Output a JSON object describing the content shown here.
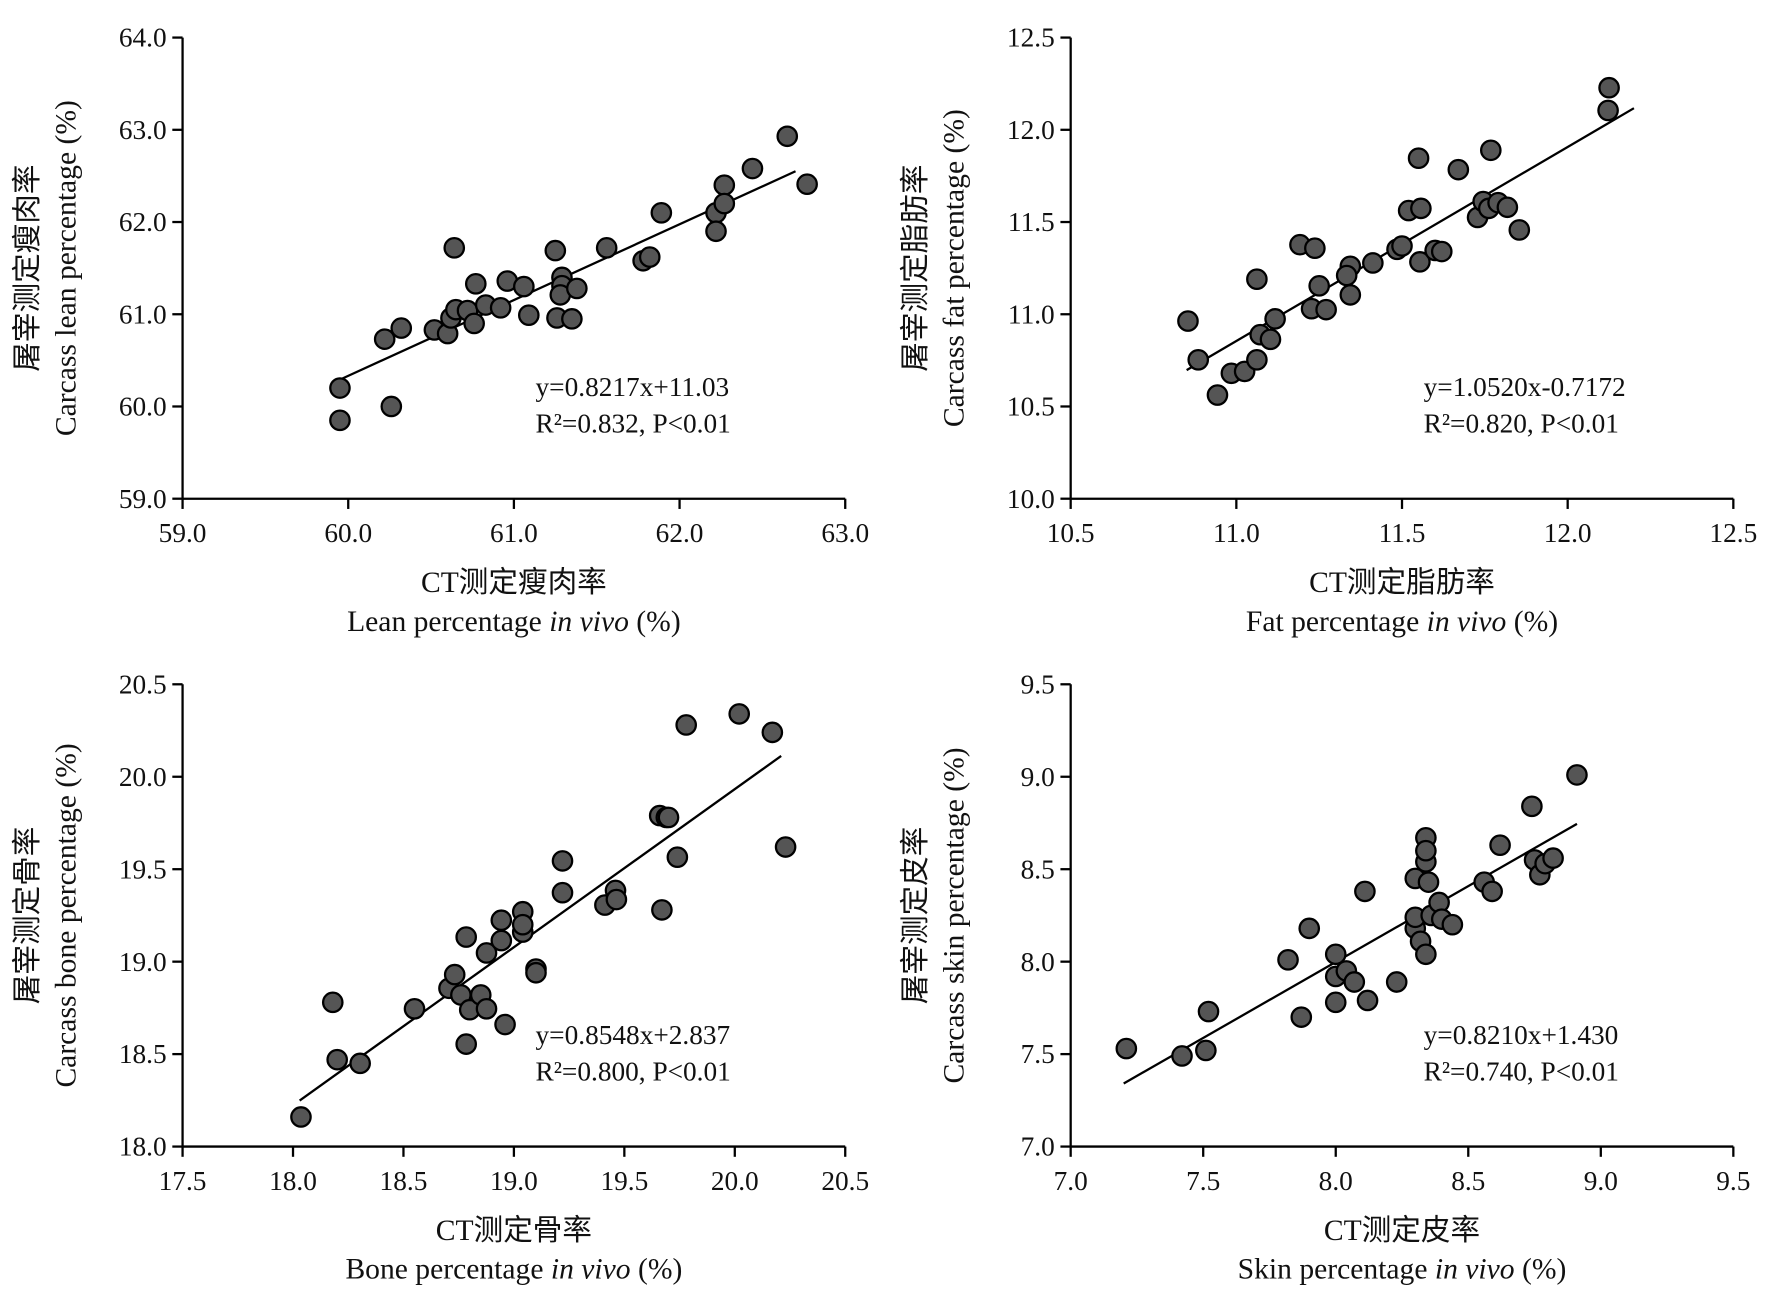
{
  "chart_data": [
    {
      "type": "scatter",
      "color": "#555555",
      "y_label": [
        "屠宰测定瘦肉率",
        "Carcass lean percentage (%)"
      ],
      "x_label": [
        "CT测定瘦肉率",
        "Lean percentage ",
        "in vivo",
        " (%)"
      ],
      "annotations": [
        "y=0.8217x+11.03",
        "R²=0.832, P<0.01"
      ],
      "xlim": [
        59,
        63
      ],
      "ylim": [
        59,
        64
      ],
      "xticks": [
        {
          "value": 59,
          "label": "59.0"
        },
        {
          "value": 60,
          "label": "60.0"
        },
        {
          "value": 61,
          "label": "61.0"
        },
        {
          "value": 62,
          "label": "62.0"
        },
        {
          "value": 63,
          "label": "63.0"
        }
      ],
      "yticks": [
        {
          "value": 59,
          "label": "59.0"
        },
        {
          "value": 60,
          "label": "60.0"
        },
        {
          "value": 61,
          "label": "61.0"
        },
        {
          "value": 62,
          "label": "62.0"
        },
        {
          "value": 63,
          "label": "63.0"
        },
        {
          "value": 64,
          "label": "64.0"
        }
      ],
      "fit": {
        "slope": 0.8217,
        "intercept": 11.03,
        "x": [
          59.95,
          62.7
        ]
      },
      "x": [
        59.95,
        59.95,
        60.26,
        60.22,
        60.32,
        60.52,
        60.6,
        60.62,
        60.65,
        60.64,
        60.72,
        60.76,
        60.77,
        60.83,
        60.92,
        60.96,
        61.06,
        61.09,
        61.25,
        61.26,
        61.29,
        61.29,
        61.28,
        61.35,
        61.38,
        61.56,
        61.78,
        61.82,
        61.89,
        62.22,
        62.22,
        62.27,
        62.27,
        62.44,
        62.65,
        62.77
      ],
      "values": [
        60.2,
        59.85,
        60.0,
        60.73,
        60.85,
        60.83,
        60.79,
        60.96,
        61.05,
        61.72,
        61.04,
        60.9,
        61.33,
        61.1,
        61.07,
        61.36,
        61.3,
        60.99,
        61.69,
        60.96,
        61.4,
        61.31,
        61.21,
        60.95,
        61.28,
        61.72,
        61.58,
        61.62,
        62.1,
        62.1,
        61.9,
        62.4,
        62.2,
        62.58,
        62.93,
        62.41
      ]
    },
    {
      "type": "scatter",
      "color": "#555555",
      "y_label": [
        "屠宰测定脂肪率",
        "Carcass fat percentage (%)"
      ],
      "x_label": [
        "CT测定脂肪率",
        "Fat percentage ",
        "in vivo",
        " (%)"
      ],
      "annotations": [
        "y=1.0520x-0.7172",
        "R²=0.820, P<0.01"
      ],
      "xlim": [
        10.5,
        12.5
      ],
      "ylim": [
        10,
        12.5
      ],
      "xticks": [
        {
          "value": 10.5,
          "label": "10.5"
        },
        {
          "value": 11,
          "label": "11.0"
        },
        {
          "value": 11.5,
          "label": "11.5"
        },
        {
          "value": 12,
          "label": "12.0"
        },
        {
          "value": 12.5,
          "label": "12.5"
        }
      ],
      "yticks": [
        {
          "value": 10,
          "label": "10.0"
        },
        {
          "value": 10.5,
          "label": "10.5"
        },
        {
          "value": 11,
          "label": "11.0"
        },
        {
          "value": 11.5,
          "label": "11.5"
        },
        {
          "value": 12,
          "label": "12.0"
        },
        {
          "value": 12.5,
          "label": "12.5"
        }
      ],
      "fit": {
        "slope": 1.052,
        "intercept": -0.7172,
        "x": [
          10.85,
          12.2
        ]
      },
      "x": [
        10.854,
        10.885,
        10.943,
        10.985,
        11.025,
        11.062,
        11.062,
        11.072,
        11.103,
        11.117,
        11.192,
        11.237,
        11.227,
        11.25,
        11.271,
        11.344,
        11.333,
        11.344,
        11.412,
        11.485,
        11.5,
        11.52,
        11.55,
        11.557,
        11.554,
        11.6,
        11.62,
        11.67,
        11.728,
        11.745,
        11.762,
        11.768,
        11.79,
        11.818,
        11.854,
        12.125,
        12.122
      ],
      "values": [
        10.963,
        10.753,
        10.562,
        10.68,
        10.69,
        11.19,
        10.753,
        10.889,
        10.864,
        10.975,
        11.377,
        11.358,
        11.03,
        11.154,
        11.025,
        11.26,
        11.21,
        11.105,
        11.278,
        11.352,
        11.37,
        11.562,
        11.846,
        11.574,
        11.284,
        11.346,
        11.34,
        11.784,
        11.525,
        11.611,
        11.574,
        11.889,
        11.605,
        11.58,
        11.457,
        12.228,
        12.105
      ]
    },
    {
      "type": "scatter",
      "color": "#555555",
      "y_label": [
        "屠宰测定骨率",
        "Carcass bone percentage (%)"
      ],
      "x_label": [
        "CT测定骨率",
        "Bone percentage ",
        "in vivo",
        " (%)"
      ],
      "annotations": [
        "y=0.8548x+2.837",
        "R²=0.800, P<0.01"
      ],
      "xlim": [
        17.5,
        20.5
      ],
      "ylim": [
        18,
        20.5
      ],
      "xticks": [
        {
          "value": 17.5,
          "label": "17.5"
        },
        {
          "value": 18,
          "label": "18.0"
        },
        {
          "value": 18.5,
          "label": "18.5"
        },
        {
          "value": 19,
          "label": "19.0"
        },
        {
          "value": 19.5,
          "label": "19.5"
        },
        {
          "value": 20,
          "label": "20.0"
        },
        {
          "value": 20.5,
          "label": "20.5"
        }
      ],
      "yticks": [
        {
          "value": 18,
          "label": "18.0"
        },
        {
          "value": 18.5,
          "label": "18.5"
        },
        {
          "value": 19,
          "label": "19.0"
        },
        {
          "value": 19.5,
          "label": "19.5"
        },
        {
          "value": 20,
          "label": "20.0"
        },
        {
          "value": 20.5,
          "label": "20.5"
        }
      ],
      "fit": {
        "slope": 0.8548,
        "intercept": 2.837,
        "x": [
          18.03,
          20.21
        ]
      },
      "x": [
        18.036,
        18.18,
        18.2,
        18.304,
        18.55,
        18.706,
        18.732,
        18.76,
        18.784,
        18.784,
        18.8,
        18.85,
        18.876,
        18.876,
        18.943,
        18.943,
        18.96,
        19.04,
        19.04,
        19.04,
        19.1,
        19.1,
        19.22,
        19.22,
        19.412,
        19.46,
        19.464,
        19.66,
        19.69,
        19.7,
        19.67,
        19.74,
        19.78,
        20.02,
        20.17,
        20.23
      ],
      "values": [
        18.16,
        18.78,
        18.47,
        18.45,
        18.745,
        18.856,
        18.93,
        18.82,
        19.133,
        18.554,
        18.74,
        18.82,
        19.047,
        18.745,
        19.224,
        19.114,
        18.66,
        19.27,
        19.16,
        19.2,
        18.96,
        18.94,
        19.545,
        19.373,
        19.306,
        19.385,
        19.336,
        19.79,
        19.78,
        19.78,
        19.28,
        19.565,
        20.28,
        20.34,
        20.24,
        19.62
      ]
    },
    {
      "type": "scatter",
      "color": "#555555",
      "y_label": [
        "屠宰测定皮率",
        "Carcass skin percentage (%)"
      ],
      "x_label": [
        "CT测定皮率",
        "Skin percentage ",
        "in vivo",
        " (%)"
      ],
      "annotations": [
        "y=0.8210x+1.430",
        "R²=0.740, P<0.01"
      ],
      "xlim": [
        7,
        9.5
      ],
      "ylim": [
        7,
        9.5
      ],
      "xticks": [
        {
          "value": 7,
          "label": "7.0"
        },
        {
          "value": 7.5,
          "label": "7.5"
        },
        {
          "value": 8,
          "label": "8.0"
        },
        {
          "value": 8.5,
          "label": "8.5"
        },
        {
          "value": 9,
          "label": "9.0"
        },
        {
          "value": 9.5,
          "label": "9.5"
        }
      ],
      "yticks": [
        {
          "value": 7,
          "label": "7.0"
        },
        {
          "value": 7.5,
          "label": "7.5"
        },
        {
          "value": 8,
          "label": "8.0"
        },
        {
          "value": 8.5,
          "label": "8.5"
        },
        {
          "value": 9,
          "label": "9.0"
        },
        {
          "value": 9.5,
          "label": "9.5"
        }
      ],
      "fit": {
        "slope": 0.821,
        "intercept": 1.43,
        "x": [
          7.2,
          8.91
        ]
      },
      "x": [
        7.21,
        7.42,
        7.51,
        7.52,
        7.82,
        7.87,
        7.9,
        8.0,
        8.0,
        8.0,
        8.04,
        8.07,
        8.11,
        8.12,
        8.23,
        8.3,
        8.3,
        8.3,
        8.32,
        8.34,
        8.34,
        8.34,
        8.34,
        8.35,
        8.36,
        8.39,
        8.4,
        8.44,
        8.56,
        8.59,
        8.62,
        8.74,
        8.75,
        8.77,
        8.79,
        8.82,
        8.91
      ],
      "values": [
        7.53,
        7.49,
        7.52,
        7.73,
        8.01,
        7.7,
        8.18,
        8.04,
        7.92,
        7.78,
        7.95,
        7.89,
        8.38,
        7.79,
        7.89,
        8.45,
        8.18,
        8.24,
        8.11,
        8.04,
        8.54,
        8.67,
        8.6,
        8.43,
        8.25,
        8.32,
        8.23,
        8.2,
        8.43,
        8.38,
        8.63,
        8.84,
        8.55,
        8.47,
        8.53,
        8.56,
        9.01
      ]
    }
  ]
}
